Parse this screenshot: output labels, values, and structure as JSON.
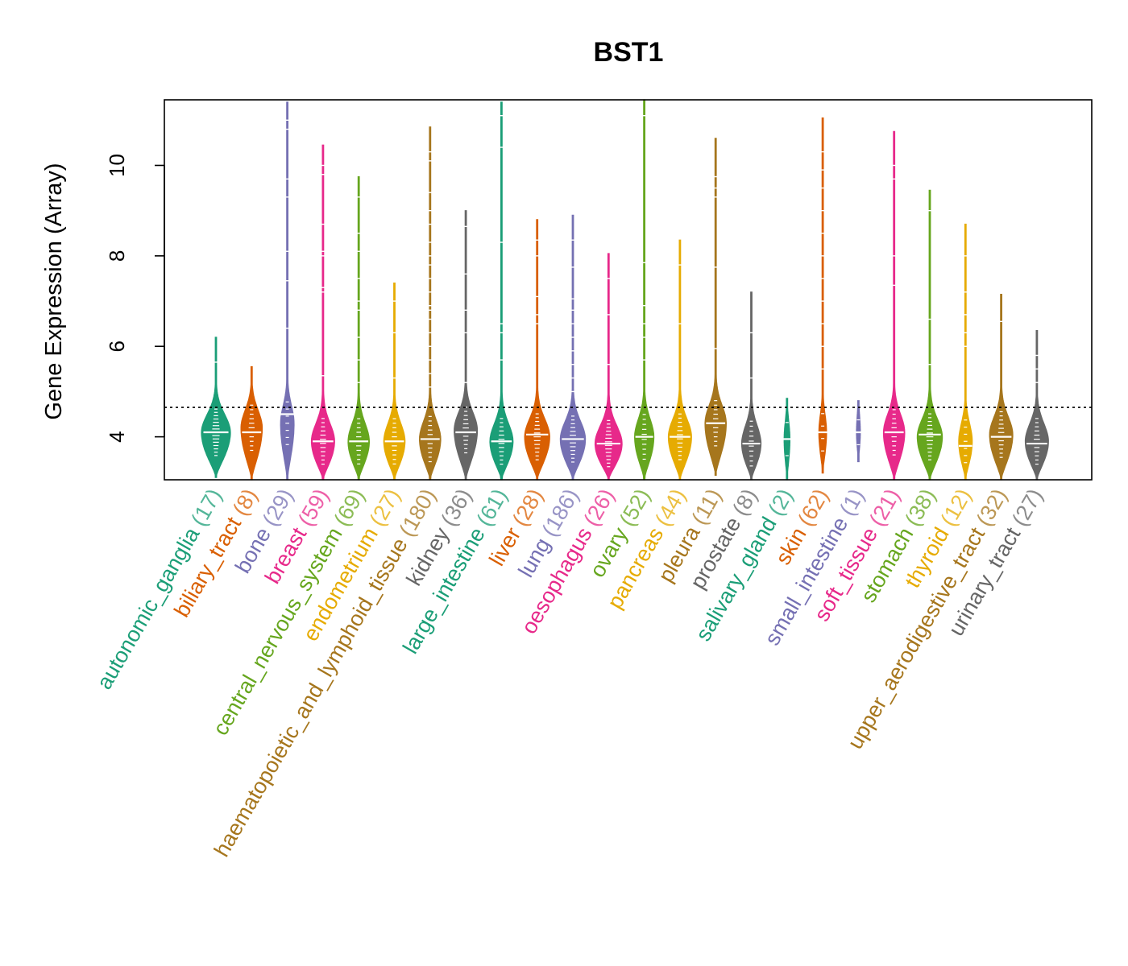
{
  "chart_data": {
    "type": "violin",
    "title": "BST1",
    "ylabel": "Gene Expression (Array)",
    "xlabel": "",
    "ylim": [
      3.05,
      11.45
    ],
    "yticks": [
      4,
      6,
      8,
      10
    ],
    "reference_line": 4.65,
    "grid": false,
    "categories": [
      {
        "name": "autonomic_ganglia",
        "n": "17",
        "color": "#1B9E77",
        "min": 3.1,
        "max": 6.2,
        "median": 4.1,
        "peak": 4.1,
        "width": 0.75,
        "outliers": [
          5.65
        ]
      },
      {
        "name": "biliary_tract",
        "n": "8",
        "color": "#D95F02",
        "min": 3.05,
        "max": 5.55,
        "median": 4.1,
        "peak": 4.2,
        "width": 0.55,
        "outliers": []
      },
      {
        "name": "bone",
        "n": "29",
        "color": "#7570B3",
        "min": 3.05,
        "max": 11.4,
        "median": 4.5,
        "peak": 4.3,
        "width": 0.35,
        "outliers": [
          11.0,
          10.8,
          9.7,
          9.3,
          8.1,
          7.45,
          6.4
        ]
      },
      {
        "name": "breast",
        "n": "59",
        "color": "#E7298A",
        "min": 3.05,
        "max": 10.45,
        "median": 3.9,
        "peak": 3.9,
        "width": 0.6,
        "outliers": [
          10.0,
          9.8,
          8.7,
          8.1,
          8.0,
          7.3,
          7.2,
          5.35
        ]
      },
      {
        "name": "central_nervous_system",
        "n": "69",
        "color": "#66A61E",
        "min": 3.05,
        "max": 9.75,
        "median": 3.9,
        "peak": 3.9,
        "width": 0.55,
        "outliers": [
          9.3,
          8.5,
          8.1,
          7.5,
          7.0,
          6.8,
          6.2,
          5.7,
          5.2
        ]
      },
      {
        "name": "endometrium",
        "n": "27",
        "color": "#E6AB02",
        "min": 3.05,
        "max": 7.4,
        "median": 3.9,
        "peak": 3.9,
        "width": 0.55,
        "outliers": [
          7.0,
          6.3,
          5.3
        ]
      },
      {
        "name": "haematopoietic_and_lymphoid_tissue",
        "n": "180",
        "color": "#A6761D",
        "min": 3.05,
        "max": 10.85,
        "median": 3.95,
        "peak": 3.95,
        "width": 0.55,
        "outliers": [
          10.3,
          10.1,
          9.4,
          9.0,
          8.7,
          8.3,
          8.0,
          7.8,
          7.5,
          7.2,
          6.9,
          6.8,
          6.6,
          6.3,
          6.0,
          5.7,
          5.4,
          5.1
        ]
      },
      {
        "name": "kidney",
        "n": "36",
        "color": "#666666",
        "min": 3.05,
        "max": 9.0,
        "median": 4.1,
        "peak": 4.15,
        "width": 0.6,
        "outliers": [
          8.65,
          7.6,
          6.8,
          6.3,
          5.2
        ]
      },
      {
        "name": "large_intestine",
        "n": "61",
        "color": "#1B9E77",
        "min": 3.05,
        "max": 11.4,
        "median": 3.9,
        "peak": 3.9,
        "width": 0.6,
        "outliers": [
          11.1,
          10.4,
          8.3,
          6.5,
          6.3,
          5.7
        ]
      },
      {
        "name": "liver",
        "n": "28",
        "color": "#D95F02",
        "min": 3.05,
        "max": 8.8,
        "median": 4.05,
        "peak": 4.0,
        "width": 0.65,
        "outliers": [
          8.35,
          8.0,
          7.1,
          6.7,
          6.5
        ]
      },
      {
        "name": "lung",
        "n": "186",
        "color": "#7570B3",
        "min": 3.05,
        "max": 8.9,
        "median": 3.95,
        "peak": 3.95,
        "width": 0.65,
        "outliers": [
          8.35,
          7.75,
          7.05,
          6.8,
          6.5,
          6.2,
          5.9,
          5.6,
          5.3,
          5.0
        ]
      },
      {
        "name": "oesophagus",
        "n": "26",
        "color": "#E7298A",
        "min": 3.05,
        "max": 8.05,
        "median": 3.85,
        "peak": 3.85,
        "width": 0.7,
        "outliers": [
          7.5,
          6.7,
          5.6
        ]
      },
      {
        "name": "ovary",
        "n": "52",
        "color": "#66A61E",
        "min": 3.05,
        "max": 11.45,
        "median": 4.0,
        "peak": 4.0,
        "width": 0.5,
        "outliers": [
          11.1,
          7.85,
          6.9,
          6.5,
          6.2,
          5.7
        ]
      },
      {
        "name": "pancreas",
        "n": "44",
        "color": "#E6AB02",
        "min": 3.05,
        "max": 8.35,
        "median": 4.0,
        "peak": 4.0,
        "width": 0.6,
        "outliers": [
          7.8,
          6.5
        ]
      },
      {
        "name": "pleura",
        "n": "11",
        "color": "#A6761D",
        "min": 3.15,
        "max": 10.6,
        "median": 4.3,
        "peak": 4.3,
        "width": 0.55,
        "outliers": [
          9.75,
          9.5,
          9.3,
          7.75,
          5.95
        ]
      },
      {
        "name": "prostate",
        "n": "8",
        "color": "#666666",
        "min": 3.05,
        "max": 7.2,
        "median": 3.85,
        "peak": 3.85,
        "width": 0.5,
        "outliers": [
          6.3,
          5.3
        ]
      },
      {
        "name": "salivary_gland",
        "n": "2",
        "color": "#1B9E77",
        "min": 3.05,
        "max": 4.85,
        "median": 3.95,
        "peak": 3.95,
        "width": 0.15,
        "outliers": []
      },
      {
        "name": "skin",
        "n": "62",
        "color": "#D95F02",
        "min": 3.2,
        "max": 11.05,
        "median": 4.1,
        "peak": 4.1,
        "width": 0.2,
        "outliers": [
          10.3,
          9.9,
          9.5,
          9.0,
          8.5,
          8.0,
          7.5,
          7.0,
          6.5,
          6.0,
          5.5
        ]
      },
      {
        "name": "small_intestine",
        "n": "1",
        "color": "#7570B3",
        "min": 3.45,
        "max": 4.8,
        "median": 4.1,
        "peak": 4.1,
        "width": 0.1,
        "outliers": []
      },
      {
        "name": "soft_tissue",
        "n": "21",
        "color": "#E7298A",
        "min": 3.05,
        "max": 10.75,
        "median": 4.1,
        "peak": 4.1,
        "width": 0.55,
        "outliers": [
          10.0,
          9.7,
          8.0,
          7.35
        ]
      },
      {
        "name": "stomach",
        "n": "38",
        "color": "#66A61E",
        "min": 3.05,
        "max": 9.45,
        "median": 4.05,
        "peak": 4.0,
        "width": 0.65,
        "outliers": [
          9.0,
          6.6,
          5.6
        ]
      },
      {
        "name": "thyroid",
        "n": "12",
        "color": "#E6AB02",
        "min": 3.05,
        "max": 8.7,
        "median": 3.8,
        "peak": 3.9,
        "width": 0.35,
        "outliers": [
          8.0,
          7.2,
          6.7,
          6.3,
          6.0
        ]
      },
      {
        "name": "upper_aerodigestive_tract",
        "n": "32",
        "color": "#A6761D",
        "min": 3.05,
        "max": 7.15,
        "median": 4.0,
        "peak": 4.05,
        "width": 0.6,
        "outliers": [
          6.55
        ]
      },
      {
        "name": "urinary_tract",
        "n": "27",
        "color": "#666666",
        "min": 3.05,
        "max": 6.35,
        "median": 3.85,
        "peak": 3.9,
        "width": 0.6,
        "outliers": [
          5.8,
          5.5,
          5.2
        ]
      }
    ]
  }
}
